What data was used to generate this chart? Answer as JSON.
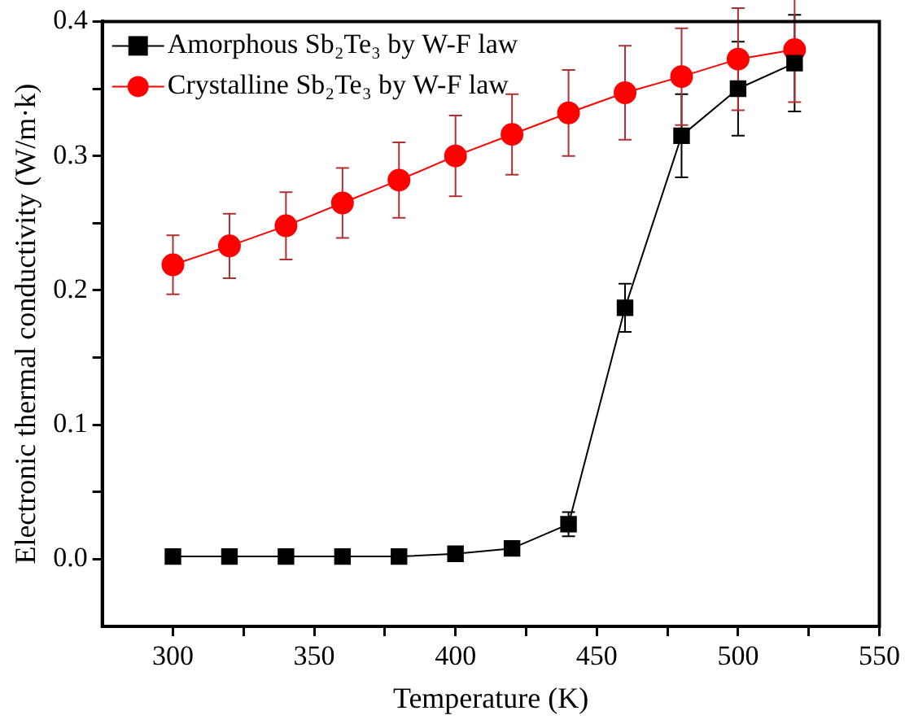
{
  "chart_data": {
    "type": "line",
    "xlabel": "Temperature (K)",
    "ylabel": "Electronic thermal conductivity (W/m·k)",
    "x": [
      300,
      320,
      340,
      360,
      380,
      400,
      420,
      440,
      460,
      480,
      500,
      520
    ],
    "series": [
      {
        "name": "Amorphous Sb₂Te₃ by W-F law",
        "color": "#000000",
        "marker": "square",
        "values": [
          0.002,
          0.002,
          0.002,
          0.002,
          0.002,
          0.004,
          0.008,
          0.026,
          0.187,
          0.315,
          0.35,
          0.369
        ],
        "errors": [
          null,
          null,
          null,
          null,
          null,
          null,
          null,
          0.009,
          0.018,
          0.031,
          0.035,
          0.036
        ]
      },
      {
        "name": "Crystalline Sb₂Te₃ by W-F law",
        "color": "#ff0000",
        "marker": "circle",
        "values": [
          0.219,
          0.233,
          0.248,
          0.265,
          0.282,
          0.3,
          0.316,
          0.332,
          0.347,
          0.359,
          0.372,
          0.379
        ],
        "errors": [
          0.022,
          0.024,
          0.025,
          0.026,
          0.028,
          0.03,
          0.03,
          0.032,
          0.035,
          0.036,
          0.038,
          0.039
        ]
      }
    ],
    "xlim": [
      275,
      550
    ],
    "xticks": [
      300,
      {
        "value": 325,
        "label": null
      },
      350,
      {
        "value": 375,
        "label": null
      },
      400,
      {
        "value": 425,
        "label": null
      },
      450,
      {
        "value": 475,
        "label": null
      },
      500,
      {
        "value": 525,
        "label": null
      },
      550
    ],
    "ylim": [
      -0.05,
      0.4
    ],
    "yticks": [
      {
        "value": 0,
        "label": "0.0"
      },
      {
        "value": 0.05,
        "label": null
      },
      0.1,
      {
        "value": 0.15,
        "label": null
      },
      0.2,
      {
        "value": 0.25,
        "label": null
      },
      0.3,
      {
        "value": 0.35,
        "label": null
      },
      0.4
    ],
    "grid": false,
    "legend": "top left",
    "line_style": "solid"
  }
}
